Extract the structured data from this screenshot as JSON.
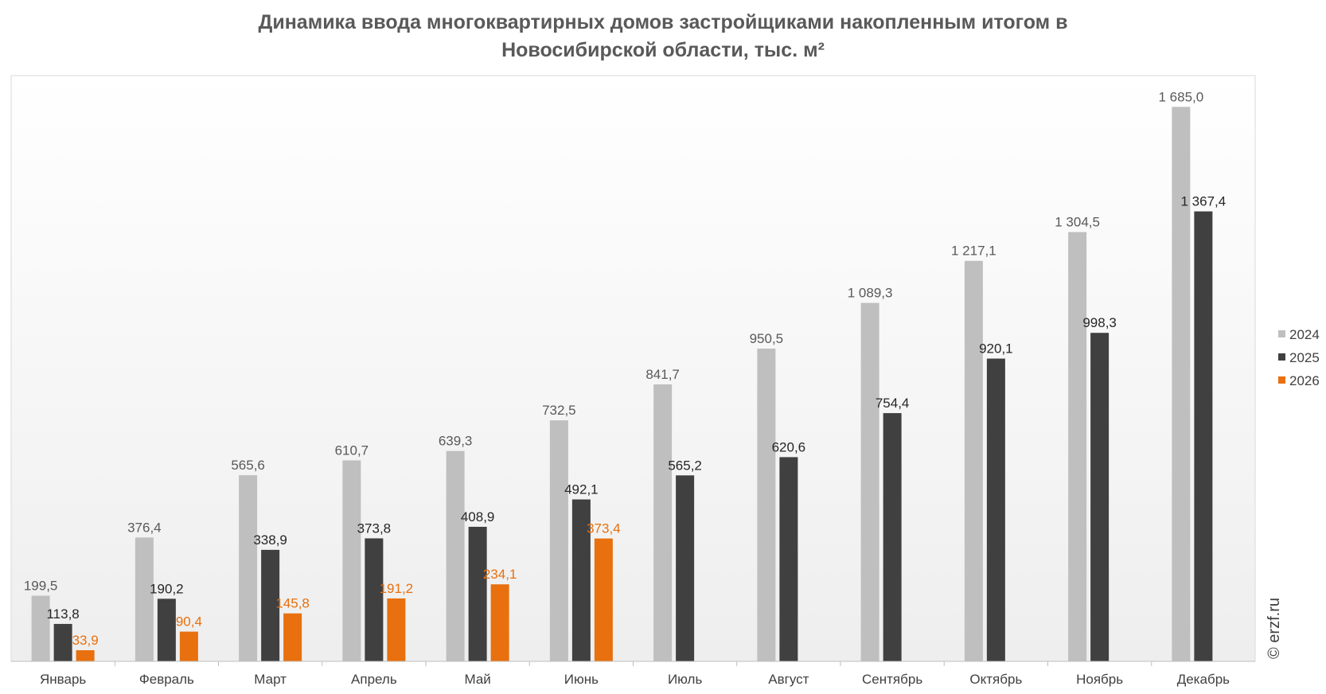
{
  "chart_data": {
    "type": "bar",
    "title_lines": [
      "Динамика ввода многоквартирных домов застройщиками накопленным итогом в",
      "Новосибирской области, тыс. м²"
    ],
    "categories": [
      "Январь",
      "Февраль",
      "Март",
      "Апрель",
      "Май",
      "Июнь",
      "Июль",
      "Август",
      "Сентябрь",
      "Октябрь",
      "Ноябрь",
      "Декабрь"
    ],
    "series": [
      {
        "name": "2024",
        "color": "#bfbfbf",
        "label_color": "#595959",
        "values": [
          199.5,
          376.4,
          565.6,
          610.7,
          639.3,
          732.5,
          841.7,
          950.5,
          1089.3,
          1217.1,
          1304.5,
          1685.0
        ],
        "labels": [
          "199,5",
          "376,4",
          "565,6",
          "610,7",
          "639,3",
          "732,5",
          "841,7",
          "950,5",
          "1 089,3",
          "1 217,1",
          "1 304,5",
          "1 685,0"
        ]
      },
      {
        "name": "2025",
        "color": "#404040",
        "label_color": "#262626",
        "values": [
          113.8,
          190.2,
          338.9,
          373.8,
          408.9,
          492.1,
          565.2,
          620.6,
          754.4,
          920.1,
          998.3,
          1367.4
        ],
        "labels": [
          "113,8",
          "190,2",
          "338,9",
          "373,8",
          "408,9",
          "492,1",
          "565,2",
          "620,6",
          "754,4",
          "920,1",
          "998,3",
          "1 367,4"
        ]
      },
      {
        "name": "2026",
        "color": "#e8700e",
        "label_color": "#e8700e",
        "values": [
          33.9,
          90.4,
          145.8,
          191.2,
          234.1,
          373.4,
          null,
          null,
          null,
          null,
          null,
          null
        ],
        "labels": [
          "33,9",
          "90,4",
          "145,8",
          "191,2",
          "234,1",
          "373,4",
          "",
          "",
          "",
          "",
          "",
          ""
        ]
      }
    ],
    "ylim": [
      0,
      1780
    ],
    "grid": false,
    "legend_position": "right",
    "watermark": "© erzf.ru"
  }
}
